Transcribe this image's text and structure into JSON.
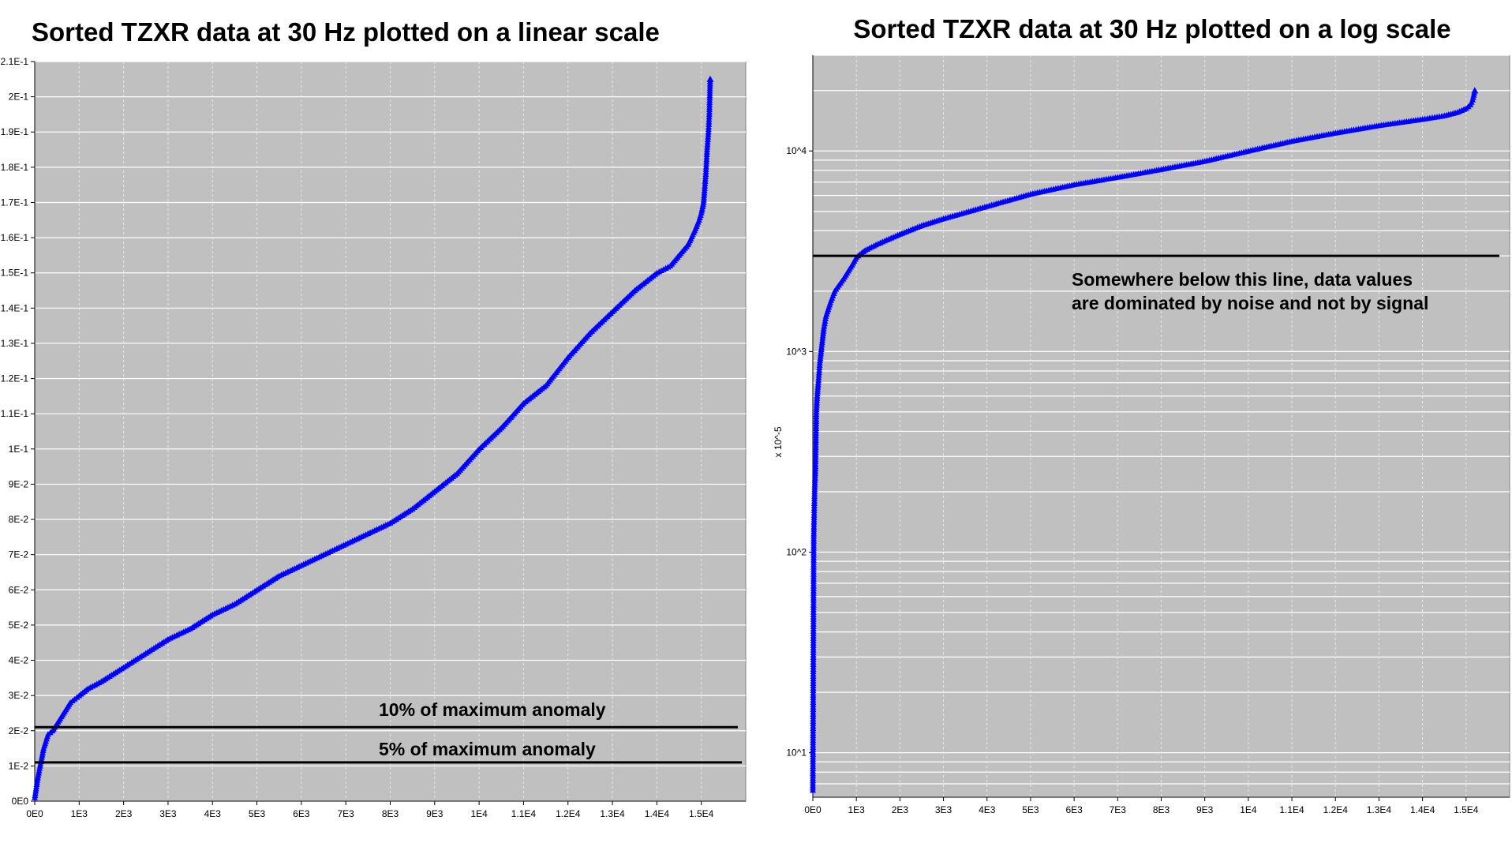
{
  "chart_data": [
    {
      "type": "line",
      "title": "Sorted TZXR data at 30 Hz plotted on a linear scale",
      "xlabel": "",
      "ylabel": "",
      "xlim": [
        0,
        16000
      ],
      "ylim": [
        0,
        0.21
      ],
      "grid": true,
      "color": "#0000ff",
      "marker": "triangle",
      "x_ticks": [
        {
          "v": 0,
          "label": "0E0"
        },
        {
          "v": 1000,
          "label": "1E3"
        },
        {
          "v": 2000,
          "label": "2E3"
        },
        {
          "v": 3000,
          "label": "3E3"
        },
        {
          "v": 4000,
          "label": "4E3"
        },
        {
          "v": 5000,
          "label": "5E3"
        },
        {
          "v": 6000,
          "label": "6E3"
        },
        {
          "v": 7000,
          "label": "7E3"
        },
        {
          "v": 8000,
          "label": "8E3"
        },
        {
          "v": 9000,
          "label": "9E3"
        },
        {
          "v": 10000,
          "label": "1E4"
        },
        {
          "v": 11000,
          "label": "1.1E4"
        },
        {
          "v": 12000,
          "label": "1.2E4"
        },
        {
          "v": 13000,
          "label": "1.3E4"
        },
        {
          "v": 14000,
          "label": "1.4E4"
        },
        {
          "v": 15000,
          "label": "1.5E4"
        }
      ],
      "y_ticks": [
        {
          "v": 0,
          "label": "0E0"
        },
        {
          "v": 0.01,
          "label": "1E-2"
        },
        {
          "v": 0.02,
          "label": "2E-2"
        },
        {
          "v": 0.03,
          "label": "3E-2"
        },
        {
          "v": 0.04,
          "label": "4E-2"
        },
        {
          "v": 0.05,
          "label": "5E-2"
        },
        {
          "v": 0.06,
          "label": "6E-2"
        },
        {
          "v": 0.07,
          "label": "7E-2"
        },
        {
          "v": 0.08,
          "label": "8E-2"
        },
        {
          "v": 0.09,
          "label": "9E-2"
        },
        {
          "v": 0.1,
          "label": "1E-1"
        },
        {
          "v": 0.11,
          "label": "1.1E-1"
        },
        {
          "v": 0.12,
          "label": "1.2E-1"
        },
        {
          "v": 0.13,
          "label": "1.3E-1"
        },
        {
          "v": 0.14,
          "label": "1.4E-1"
        },
        {
          "v": 0.15,
          "label": "1.5E-1"
        },
        {
          "v": 0.16,
          "label": "1.6E-1"
        },
        {
          "v": 0.17,
          "label": "1.7E-1"
        },
        {
          "v": 0.18,
          "label": "1.8E-1"
        },
        {
          "v": 0.19,
          "label": "1.9E-1"
        },
        {
          "v": 0.2,
          "label": "2E-1"
        },
        {
          "v": 0.21,
          "label": "2.1E-1"
        }
      ],
      "series": [
        {
          "x": [
            0,
            60,
            120,
            200,
            300,
            400,
            500,
            600,
            700,
            800,
            900,
            1000,
            1200,
            1500,
            2000,
            2500,
            3000,
            3500,
            4000,
            4500,
            5000,
            5500,
            6000,
            6500,
            7000,
            7500,
            8000,
            8500,
            9000,
            9500,
            10000,
            10500,
            11000,
            11500,
            12000,
            12500,
            13000,
            13500,
            14000,
            14300,
            14500,
            14700,
            14850,
            14950,
            15000,
            15050,
            15100,
            15130,
            15160,
            15180,
            15200
          ],
          "y": [
            0.001,
            0.006,
            0.01,
            0.015,
            0.019,
            0.02,
            0.022,
            0.024,
            0.026,
            0.028,
            0.029,
            0.03,
            0.032,
            0.034,
            0.038,
            0.042,
            0.046,
            0.049,
            0.053,
            0.056,
            0.06,
            0.064,
            0.067,
            0.07,
            0.073,
            0.076,
            0.079,
            0.083,
            0.088,
            0.093,
            0.1,
            0.106,
            0.113,
            0.118,
            0.126,
            0.133,
            0.139,
            0.145,
            0.15,
            0.152,
            0.155,
            0.158,
            0.162,
            0.165,
            0.167,
            0.17,
            0.178,
            0.185,
            0.19,
            0.195,
            0.205
          ]
        }
      ],
      "hlines": [
        {
          "y": 0.021,
          "label": "10% of maximum anomaly"
        },
        {
          "y": 0.011,
          "label": "5% of maximum anomaly"
        }
      ]
    },
    {
      "type": "line",
      "title": "Sorted TZXR data at 30 Hz plotted on a log scale",
      "xlabel": "",
      "ylabel": "x 10^-5",
      "xlim": [
        0,
        16000
      ],
      "ylim": [
        6,
        30000
      ],
      "yscale": "log",
      "grid": true,
      "color": "#0000ff",
      "marker": "triangle",
      "x_ticks": [
        {
          "v": 0,
          "label": "0E0"
        },
        {
          "v": 1000,
          "label": "1E3"
        },
        {
          "v": 2000,
          "label": "2E3"
        },
        {
          "v": 3000,
          "label": "3E3"
        },
        {
          "v": 4000,
          "label": "4E3"
        },
        {
          "v": 5000,
          "label": "5E3"
        },
        {
          "v": 6000,
          "label": "6E3"
        },
        {
          "v": 7000,
          "label": "7E3"
        },
        {
          "v": 8000,
          "label": "8E3"
        },
        {
          "v": 9000,
          "label": "9E3"
        },
        {
          "v": 10000,
          "label": "1E4"
        },
        {
          "v": 11000,
          "label": "1.1E4"
        },
        {
          "v": 12000,
          "label": "1.2E4"
        },
        {
          "v": 13000,
          "label": "1.3E4"
        },
        {
          "v": 14000,
          "label": "1.4E4"
        },
        {
          "v": 15000,
          "label": "1.5E4"
        }
      ],
      "y_ticks": [
        {
          "v": 10,
          "label": "10^1"
        },
        {
          "v": 100,
          "label": "10^2"
        },
        {
          "v": 1000,
          "label": "10^3"
        },
        {
          "v": 10000,
          "label": "10^4"
        }
      ],
      "series": [
        {
          "x": [
            0,
            20,
            40,
            60,
            80,
            100,
            130,
            160,
            200,
            250,
            300,
            400,
            500,
            700,
            900,
            1000,
            1200,
            1500,
            2000,
            2500,
            3000,
            4000,
            5000,
            6000,
            7000,
            8000,
            9000,
            10000,
            11000,
            12000,
            13000,
            14000,
            14500,
            14800,
            15000,
            15100,
            15150,
            15200
          ],
          "y": [
            6.5,
            120,
            200,
            260,
            500,
            600,
            720,
            880,
            1050,
            1300,
            1500,
            1750,
            2000,
            2300,
            2700,
            2950,
            3200,
            3450,
            3850,
            4250,
            4600,
            5300,
            6100,
            6800,
            7400,
            8100,
            8900,
            10000,
            11200,
            12300,
            13400,
            14400,
            15000,
            15600,
            16300,
            17000,
            18000,
            20000
          ]
        }
      ],
      "hlines": [
        {
          "y": 3000,
          "label": "Somewhere below this line, data values are dominated by noise and not by signal"
        }
      ]
    }
  ],
  "annotations": {
    "left_line_10": "10% of maximum anomaly",
    "left_line_5": "5% of maximum anomaly",
    "right_line_1": "Somewhere below this line, data values",
    "right_line_2": "are dominated by noise and not by signal"
  }
}
